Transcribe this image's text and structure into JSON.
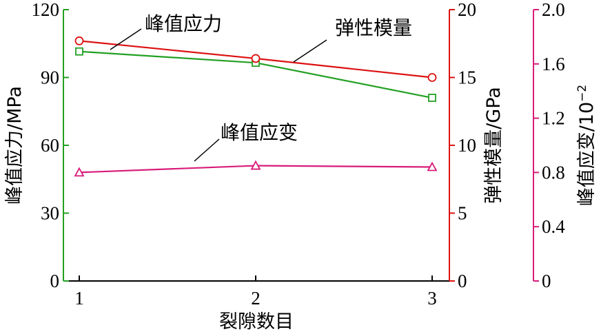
{
  "chart_data": {
    "type": "line",
    "x": [
      1,
      2,
      3
    ],
    "x_ticks": [
      "1",
      "2",
      "3"
    ],
    "xlabel": "裂隙数目",
    "xlim": [
      0.9,
      3.1
    ],
    "axes": {
      "left": {
        "label": "峰值应力/MPa",
        "range": [
          0,
          120
        ],
        "ticks": [
          "0",
          "30",
          "60",
          "90",
          "120"
        ],
        "color": "#22a022"
      },
      "right1": {
        "label": "弹性模量/GPa",
        "range": [
          0,
          20
        ],
        "ticks": [
          "0",
          "5",
          "10",
          "15",
          "20"
        ],
        "color": "#dd1111"
      },
      "right2": {
        "label": "峰值应变/10",
        "label_sup": "−2",
        "range": [
          0,
          2.0
        ],
        "ticks": [
          "0",
          "0.4",
          "0.8",
          "1.2",
          "1.6",
          "2.0"
        ],
        "color": "#d81b7a"
      }
    },
    "series": [
      {
        "key": "stress",
        "axis": "left",
        "values": [
          101.5,
          96.5,
          81.0
        ],
        "color": "#22a022",
        "marker": "square",
        "label": "峰值应力"
      },
      {
        "key": "modulus",
        "axis": "right1",
        "values": [
          17.7,
          16.4,
          15.0
        ],
        "color": "#dd1111",
        "marker": "circle",
        "label": "弹性模量"
      },
      {
        "key": "strain",
        "axis": "right2",
        "values": [
          0.8,
          0.85,
          0.84
        ],
        "color": "#d81b7a",
        "marker": "triangle",
        "label": "峰值应变"
      }
    ],
    "grid": false
  }
}
